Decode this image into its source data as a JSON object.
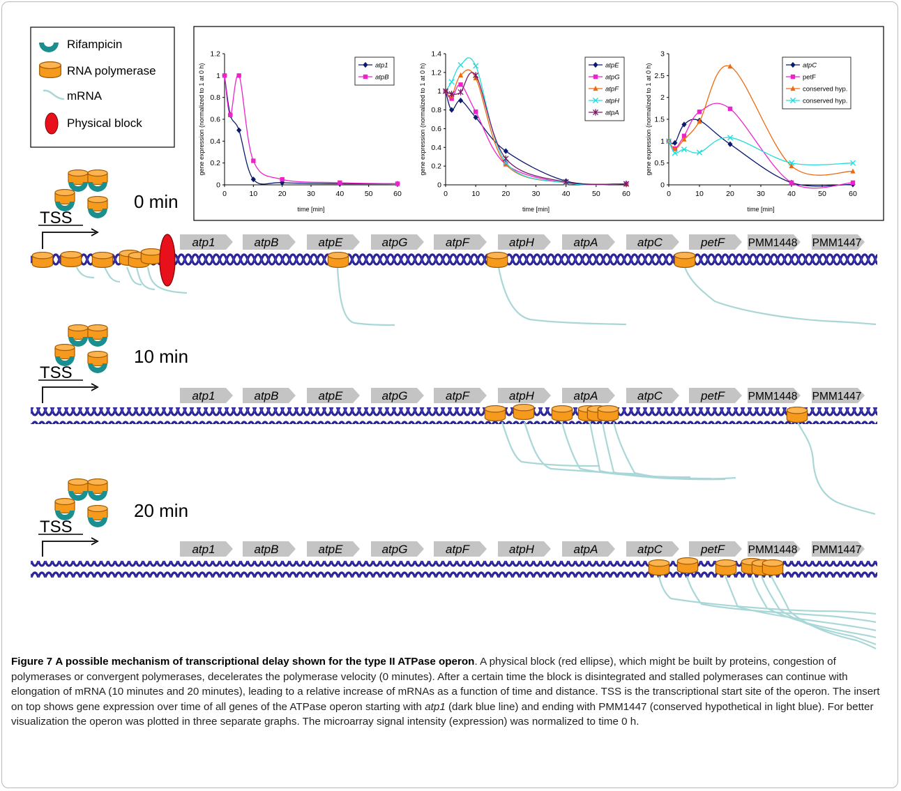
{
  "legend": {
    "items": [
      {
        "label": "Rifampicin",
        "icon": "rifampicin-icon"
      },
      {
        "label": "RNA polymerase",
        "icon": "rna-polymerase-icon"
      },
      {
        "label": "mRNA",
        "icon": "mrna-icon"
      },
      {
        "label": "Physical block",
        "icon": "physical-block-icon"
      }
    ]
  },
  "panels": [
    {
      "time_label": "0 min",
      "tss_label": "TSS"
    },
    {
      "time_label": "10 min",
      "tss_label": "TSS"
    },
    {
      "time_label": "20 min",
      "tss_label": "TSS"
    }
  ],
  "genes": [
    "atp1",
    "atpB",
    "atpE",
    "atpG",
    "atpF",
    "atpH",
    "atpA",
    "atpC",
    "petF",
    "PMM1448",
    "PMM1447"
  ],
  "chart_data": [
    {
      "type": "line",
      "title": "",
      "xlabel": "time [min]",
      "ylabel": "gene expression (normalized to 1 at 0 h)",
      "xlim": [
        0,
        60
      ],
      "ylim": [
        0,
        1.2
      ],
      "xticks": [
        "0",
        "10",
        "20",
        "30",
        "40",
        "50",
        "60"
      ],
      "yticks": [
        "0",
        "0.2",
        "0.4",
        "0.6",
        "0.8",
        "1",
        "1.2"
      ],
      "legend_position": "top-right",
      "series": [
        {
          "name": "atp1",
          "color": "#0a1a6e",
          "marker": "diamond",
          "x": [
            0,
            2,
            5,
            10,
            20,
            40,
            60
          ],
          "y": [
            1.0,
            0.64,
            0.5,
            0.05,
            0.02,
            0.01,
            0.01
          ]
        },
        {
          "name": "atpB",
          "color": "#ee22cc",
          "marker": "square",
          "x": [
            0,
            2,
            5,
            10,
            20,
            40,
            60
          ],
          "y": [
            1.0,
            0.64,
            1.0,
            0.22,
            0.05,
            0.02,
            0.01
          ]
        }
      ]
    },
    {
      "type": "line",
      "title": "",
      "xlabel": "time [min]",
      "ylabel": "gene expression (normalized to 1 at 0 h)",
      "xlim": [
        0,
        60
      ],
      "ylim": [
        0,
        1.4
      ],
      "xticks": [
        "0",
        "10",
        "20",
        "30",
        "40",
        "50",
        "60"
      ],
      "yticks": [
        "0",
        "0.2",
        "0.4",
        "0.6",
        "0.8",
        "1",
        "1.2",
        "1.4"
      ],
      "legend_position": "top-right",
      "series": [
        {
          "name": "atpE",
          "color": "#0a1a6e",
          "marker": "diamond",
          "x": [
            0,
            2,
            5,
            10,
            20,
            40,
            60
          ],
          "y": [
            1.0,
            0.8,
            0.9,
            0.72,
            0.36,
            0.04,
            0.01
          ]
        },
        {
          "name": "atpG",
          "color": "#ee22cc",
          "marker": "square",
          "x": [
            0,
            2,
            5,
            10,
            20,
            40,
            60
          ],
          "y": [
            1.0,
            0.92,
            1.07,
            0.78,
            0.22,
            0.02,
            0.01
          ]
        },
        {
          "name": "atpF",
          "color": "#ee6a10",
          "marker": "triangle",
          "x": [
            0,
            2,
            5,
            10,
            20,
            40,
            60
          ],
          "y": [
            1.0,
            0.95,
            1.17,
            1.14,
            0.22,
            0.02,
            0.01
          ]
        },
        {
          "name": "atpH",
          "color": "#22dddd",
          "marker": "x",
          "x": [
            0,
            2,
            5,
            10,
            20,
            40,
            60
          ],
          "y": [
            1.0,
            1.1,
            1.28,
            1.27,
            0.24,
            0.02,
            0.01
          ]
        },
        {
          "name": "atpA",
          "color": "#771a66",
          "marker": "star",
          "x": [
            0,
            2,
            5,
            10,
            20,
            40,
            60
          ],
          "y": [
            1.0,
            0.97,
            0.99,
            1.17,
            0.28,
            0.03,
            0.01
          ]
        }
      ]
    },
    {
      "type": "line",
      "title": "",
      "xlabel": "time [min]",
      "ylabel": "gene expression (normalized to 1 at 0 h)",
      "xlim": [
        0,
        60
      ],
      "ylim": [
        0,
        3
      ],
      "xticks": [
        "0",
        "10",
        "20",
        "30",
        "40",
        "50",
        "60"
      ],
      "yticks": [
        "0",
        "0.5",
        "1",
        "1.5",
        "2",
        "2.5",
        "3"
      ],
      "legend_position": "top-right",
      "series": [
        {
          "name": "atpC",
          "color": "#0a1a6e",
          "marker": "diamond",
          "x": [
            0,
            2,
            5,
            10,
            20,
            40,
            60
          ],
          "y": [
            1.0,
            0.96,
            1.38,
            1.47,
            0.93,
            0.05,
            0.01
          ]
        },
        {
          "name": "petF",
          "color": "#ee22cc",
          "marker": "square",
          "x": [
            0,
            2,
            5,
            10,
            20,
            40,
            60
          ],
          "y": [
            1.0,
            0.83,
            1.12,
            1.67,
            1.74,
            0.05,
            0.05
          ]
        },
        {
          "name": "conserved hyp.",
          "color": "#ee6a10",
          "marker": "triangle",
          "x": [
            0,
            2,
            5,
            10,
            20,
            40,
            60
          ],
          "y": [
            1.0,
            0.82,
            1.04,
            1.45,
            2.71,
            0.43,
            0.31
          ]
        },
        {
          "name": "conserved hyp.",
          "color": "#22dddd",
          "marker": "x",
          "x": [
            0,
            2,
            5,
            10,
            20,
            40,
            60
          ],
          "y": [
            1.0,
            0.73,
            0.81,
            0.74,
            1.08,
            0.5,
            0.5
          ]
        }
      ]
    }
  ],
  "caption": {
    "figure_label": "Figure 7",
    "title": "A possible mechanism of transcriptional delay shown for the type II ATPase operon",
    "body_1": ". A physical block (red ellipse), which might be built by proteins, congestion of polymerases or convergent polymerases, decelerates the polymerase velocity (0 minutes). After a certain time the block is disintegrated and stalled polymerases can continue with elongation of mRNA (10 minutes and 20 minutes), leading to a relative increase of mRNAs as a function of time and distance. TSS is the transcriptional start site of the operon. The insert on top shows gene expression over time of all genes of the ATPase operon starting with ",
    "body_italic_1": "atp1",
    "body_2": " (dark blue line) and ending with PMM1447 (conserved hypothetical in light blue). For better visualization the operon was plotted in three separate graphs. The microarray signal intensity (expression) was normalized to time 0 h."
  },
  "colors": {
    "dna": "#2a2496",
    "polymerase_fill": "#f59a1c",
    "polymerase_stroke": "#a65a00",
    "rifampicin": "#1b8f8f",
    "mrna": "#a9d7d7",
    "block": "#e8101a",
    "gene_arrow": "#c4c4c4"
  }
}
